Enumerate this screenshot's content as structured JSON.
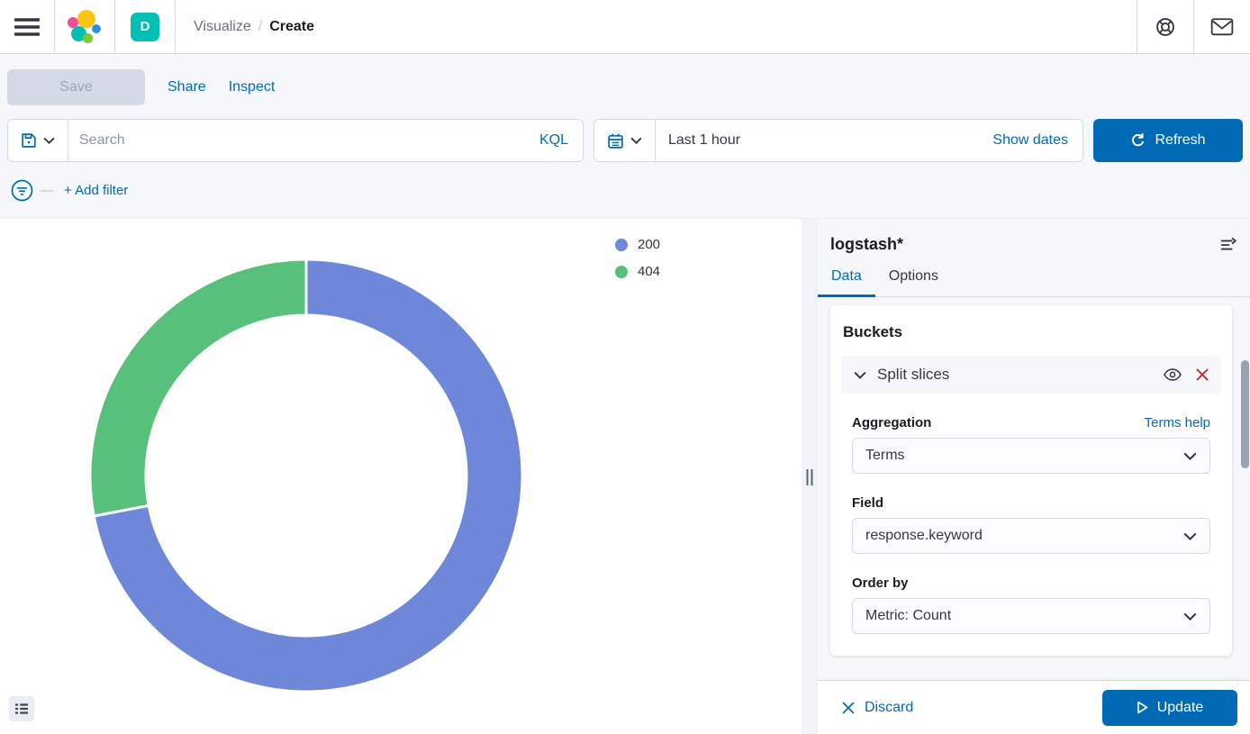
{
  "header": {
    "breadcrumb": {
      "section": "Visualize",
      "separator": "/",
      "page": "Create"
    },
    "space_badge": "D"
  },
  "toolbar": {
    "save_label": "Save",
    "share_label": "Share",
    "inspect_label": "Inspect"
  },
  "query_bar": {
    "search_placeholder": "Search",
    "kql_label": "KQL",
    "time_range": "Last 1 hour",
    "show_dates_label": "Show dates",
    "refresh_label": "Refresh"
  },
  "filter_bar": {
    "add_filter_label": "+ Add filter"
  },
  "chart_data": {
    "type": "pie",
    "subtype": "donut",
    "categories": [
      "200",
      "404"
    ],
    "values": [
      72,
      28
    ],
    "value_unit": "percent (estimated from arc angles)",
    "series_colors": [
      "#6F87D8",
      "#57C17B"
    ],
    "legend_position": "right",
    "start_angle_deg": 0,
    "clockwise": true
  },
  "side_panel": {
    "index_pattern": "logstash*",
    "tabs": [
      {
        "label": "Data",
        "active": true
      },
      {
        "label": "Options",
        "active": false
      }
    ],
    "buckets": {
      "title": "Buckets",
      "bucket_label": "Split slices",
      "fields": [
        {
          "label": "Aggregation",
          "value": "Terms",
          "help_link": "Terms help"
        },
        {
          "label": "Field",
          "value": "response.keyword"
        },
        {
          "label": "Order by",
          "value": "Metric: Count"
        }
      ]
    },
    "footer": {
      "discard_label": "Discard",
      "update_label": "Update"
    }
  },
  "icons": {
    "header": [
      "hamburger-icon",
      "elastic-logo",
      "help-icon",
      "mail-icon"
    ],
    "query_bar": [
      "floppy-save-icon",
      "chevron-down-icon",
      "calendar-icon",
      "refresh-icon"
    ],
    "filter_bar": [
      "filter-circle-icon"
    ],
    "panel": [
      "collapse-panel-icon",
      "eye-icon",
      "remove-x-icon",
      "discard-x-icon",
      "play-icon"
    ],
    "chart": [
      "legend-list-icon"
    ]
  },
  "colors": {
    "link_blue": "#006BB4",
    "primary_button": "#006BB4",
    "badge_teal": "#00BFB3",
    "danger_red": "#BD271E",
    "slice_200": "#6F87D8",
    "slice_404": "#57C17B"
  }
}
